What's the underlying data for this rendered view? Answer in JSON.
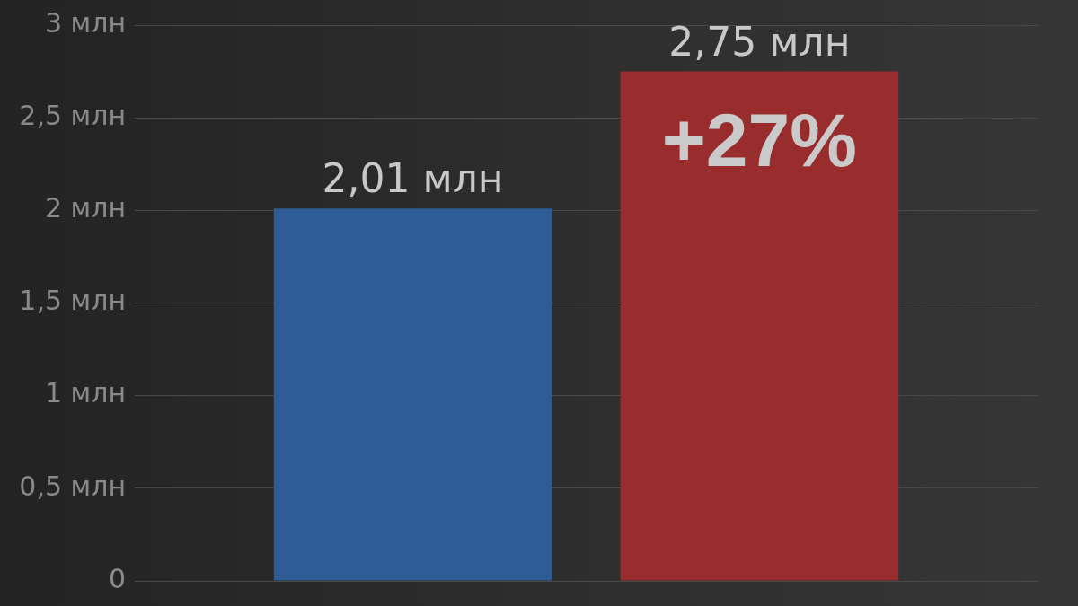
{
  "chart_data": {
    "type": "bar",
    "categories": [
      null,
      null
    ],
    "values": [
      2.01,
      2.75
    ],
    "colors": [
      "#2e5d96",
      "#992d2d"
    ],
    "value_labels": [
      "2,01 млн",
      "2,75 млн"
    ],
    "annotations": [
      "+27%"
    ],
    "ylim": [
      0,
      3
    ],
    "yticks": [
      0,
      {
        "value": 0.5,
        "label": "0,5 млн"
      },
      {
        "value": 1,
        "label": "1 млн"
      },
      {
        "value": 1.5,
        "label": "1,5 млн"
      },
      {
        "value": 2,
        "label": "2 млн"
      },
      {
        "value": 2.5,
        "label": "2,5 млн"
      },
      {
        "value": 3,
        "label": "3 млн"
      }
    ],
    "grid": "y",
    "legend": false
  }
}
